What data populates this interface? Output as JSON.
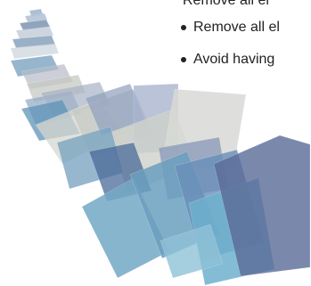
{
  "lines": [
    "Remove all el",
    "Remove all el",
    "Avoid having"
  ]
}
